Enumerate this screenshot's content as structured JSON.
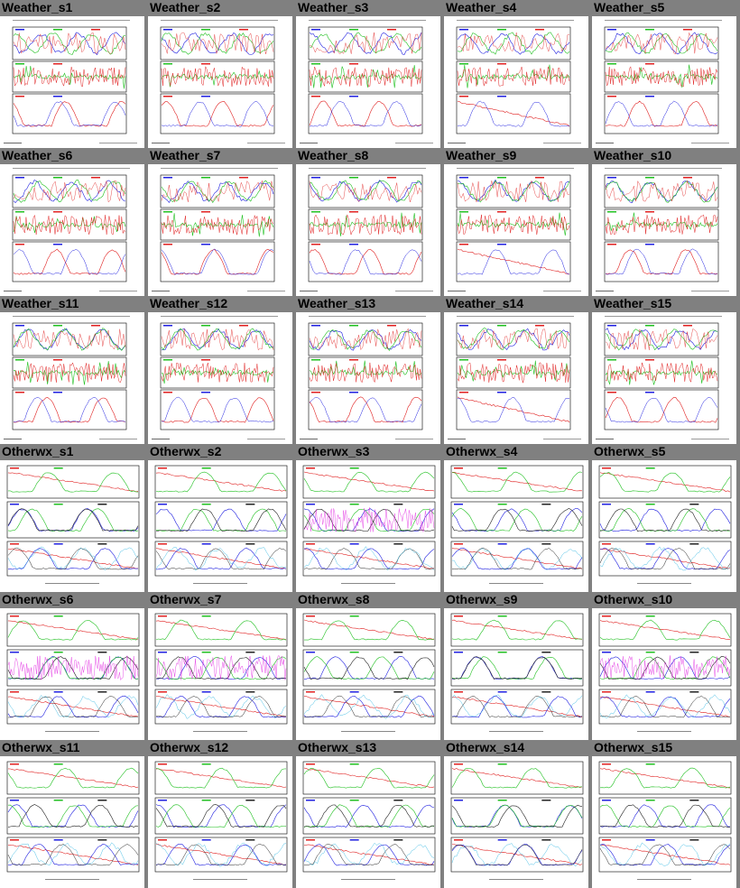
{
  "page": {
    "background": "#808080"
  },
  "plots": [
    {
      "title": "Weather_s1",
      "kind": "weather",
      "seed": 1
    },
    {
      "title": "Weather_s2",
      "kind": "weather",
      "seed": 2
    },
    {
      "title": "Weather_s3",
      "kind": "weather",
      "seed": 3
    },
    {
      "title": "Weather_s4",
      "kind": "weather",
      "seed": 4
    },
    {
      "title": "Weather_s5",
      "kind": "weather",
      "seed": 5
    },
    {
      "title": "Weather_s6",
      "kind": "weather",
      "seed": 6
    },
    {
      "title": "Weather_s7",
      "kind": "weather",
      "seed": 7
    },
    {
      "title": "Weather_s8",
      "kind": "weather",
      "seed": 8
    },
    {
      "title": "Weather_s9",
      "kind": "weather",
      "seed": 9
    },
    {
      "title": "Weather_s10",
      "kind": "weather",
      "seed": 10
    },
    {
      "title": "Weather_s11",
      "kind": "weather",
      "seed": 11
    },
    {
      "title": "Weather_s12",
      "kind": "weather",
      "seed": 12
    },
    {
      "title": "Weather_s13",
      "kind": "weather",
      "seed": 13
    },
    {
      "title": "Weather_s14",
      "kind": "weather",
      "seed": 14
    },
    {
      "title": "Weather_s15",
      "kind": "weather",
      "seed": 15
    },
    {
      "title": "Otherwx_s1",
      "kind": "otherwx",
      "seed": 21
    },
    {
      "title": "Otherwx_s2",
      "kind": "otherwx",
      "seed": 22
    },
    {
      "title": "Otherwx_s3",
      "kind": "otherwx",
      "seed": 23
    },
    {
      "title": "Otherwx_s4",
      "kind": "otherwx",
      "seed": 24
    },
    {
      "title": "Otherwx_s5",
      "kind": "otherwx",
      "seed": 25
    },
    {
      "title": "Otherwx_s6",
      "kind": "otherwx",
      "seed": 26
    },
    {
      "title": "Otherwx_s7",
      "kind": "otherwx",
      "seed": 27
    },
    {
      "title": "Otherwx_s8",
      "kind": "otherwx",
      "seed": 28
    },
    {
      "title": "Otherwx_s9",
      "kind": "otherwx",
      "seed": 29
    },
    {
      "title": "Otherwx_s10",
      "kind": "otherwx",
      "seed": 30
    },
    {
      "title": "Otherwx_s11",
      "kind": "otherwx",
      "seed": 31
    },
    {
      "title": "Otherwx_s12",
      "kind": "otherwx",
      "seed": 32
    },
    {
      "title": "Otherwx_s13",
      "kind": "otherwx",
      "seed": 33
    },
    {
      "title": "Otherwx_s14",
      "kind": "otherwx",
      "seed": 34
    },
    {
      "title": "Otherwx_s15",
      "kind": "otherwx",
      "seed": 35
    }
  ],
  "colors": {
    "red": "#e02020",
    "green": "#20c020",
    "blue": "#2020e0",
    "cyan": "#20b0e0",
    "magenta": "#e020e0",
    "black": "#202020",
    "frame": "#000000"
  }
}
